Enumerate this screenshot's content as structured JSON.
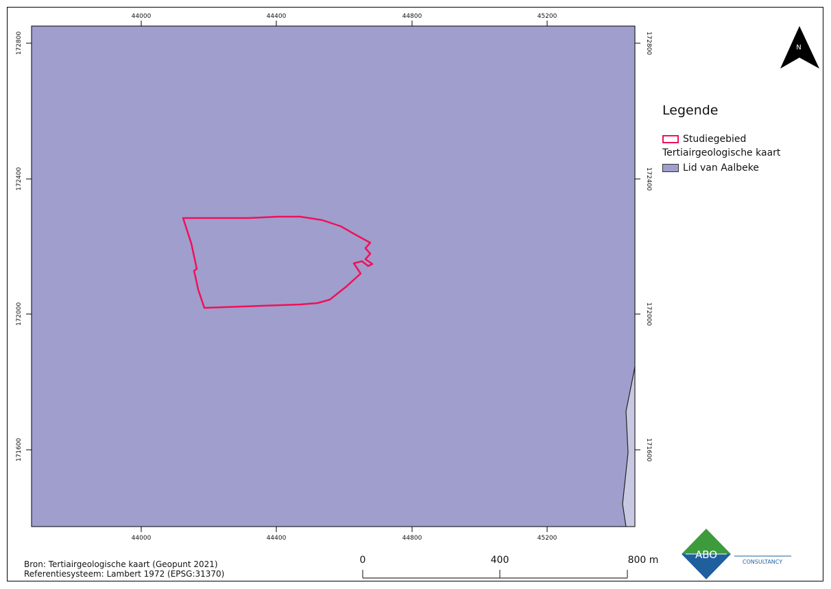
{
  "map": {
    "x_ticks": [
      {
        "value": 44000,
        "label": "44000"
      },
      {
        "value": 44400,
        "label": "44400"
      },
      {
        "value": 44800,
        "label": "44800"
      },
      {
        "value": 45200,
        "label": "45200"
      }
    ],
    "y_ticks": [
      {
        "value": 172800,
        "label": "172800"
      },
      {
        "value": 172400,
        "label": "172400"
      },
      {
        "value": 172000,
        "label": "172000"
      },
      {
        "value": 171600,
        "label": "171600"
      }
    ],
    "fill_color": "#a09ecc",
    "secondary_fill_color": "#c9c8e2",
    "outline_color": "#f0105a"
  },
  "north_arrow": {
    "label": "N"
  },
  "legend": {
    "title": "Legende",
    "items": [
      {
        "label": "Studiegebied"
      }
    ],
    "group_label": "Tertiairgeologische kaart",
    "group_items": [
      {
        "label": "Lid van Aalbeke"
      }
    ]
  },
  "scale_bar": {
    "labels": [
      "0",
      "400",
      "800 m"
    ]
  },
  "source": {
    "line1": "Bron: Tertiairgeologische kaart (Geopunt 2021)",
    "line2": "Referentiesysteem: Lambert 1972 (EPSG:31370)"
  },
  "logo": {
    "text": "ABO",
    "subtext": "CONSULTANCY",
    "color_top": "#3d9b3c",
    "color_bottom": "#1f5f9e"
  }
}
